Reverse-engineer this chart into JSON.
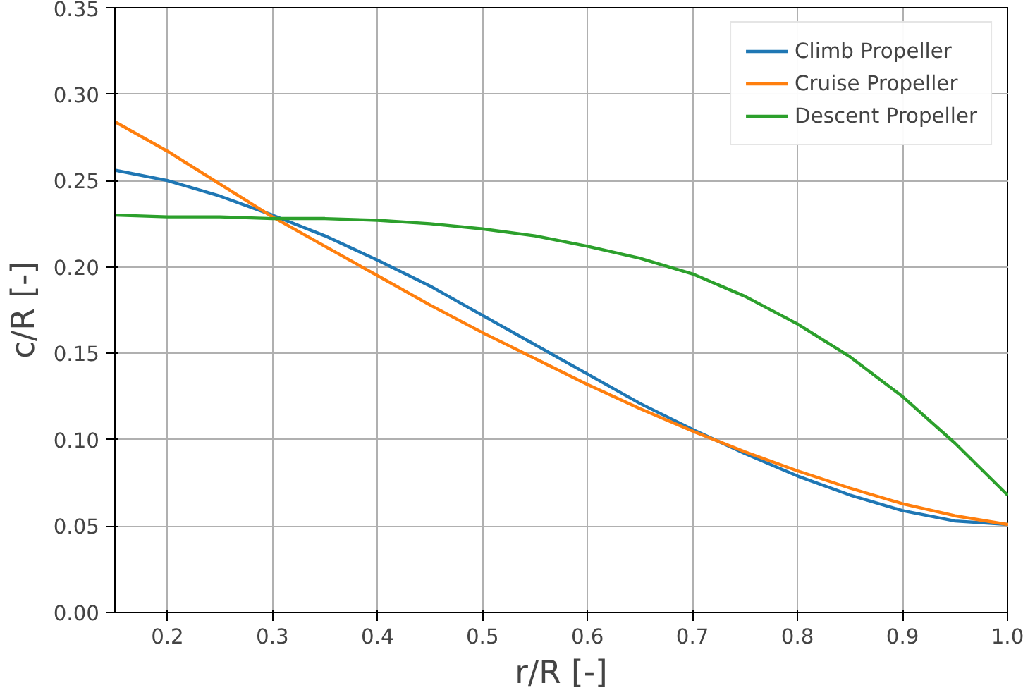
{
  "chart_data": {
    "type": "line",
    "xlabel": "r/R [-]",
    "ylabel": "c/R [-]",
    "x": [
      0.15,
      0.2,
      0.25,
      0.3,
      0.35,
      0.4,
      0.45,
      0.5,
      0.55,
      0.6,
      0.65,
      0.7,
      0.75,
      0.8,
      0.85,
      0.9,
      0.95,
      1.0
    ],
    "series": [
      {
        "name": "Climb Propeller",
        "color": "#1f77b4",
        "values": [
          0.256,
          0.25,
          0.241,
          0.23,
          0.218,
          0.204,
          0.189,
          0.172,
          0.155,
          0.138,
          0.121,
          0.106,
          0.092,
          0.079,
          0.068,
          0.059,
          0.053,
          0.051
        ]
      },
      {
        "name": "Cruise Propeller",
        "color": "#ff7f0e",
        "values": [
          0.284,
          0.267,
          0.248,
          0.229,
          0.212,
          0.195,
          0.178,
          0.162,
          0.147,
          0.132,
          0.118,
          0.105,
          0.093,
          0.082,
          0.072,
          0.063,
          0.056,
          0.051
        ]
      },
      {
        "name": "Descent Propeller",
        "color": "#2ca02c",
        "values": [
          0.23,
          0.229,
          0.229,
          0.228,
          0.228,
          0.227,
          0.225,
          0.222,
          0.218,
          0.212,
          0.205,
          0.196,
          0.183,
          0.167,
          0.148,
          0.125,
          0.098,
          0.068
        ]
      }
    ],
    "xlim": [
      0.15,
      1.0
    ],
    "ylim": [
      0,
      0.35
    ],
    "xticks": [
      0.2,
      0.3,
      0.4,
      0.5,
      0.6,
      0.7,
      0.8,
      0.9,
      {
        "value": 1.0,
        "label": "1.0"
      }
    ],
    "yticks": [
      {
        "value": 0,
        "label": "0.00"
      },
      {
        "value": 0.05,
        "label": "0.05"
      },
      {
        "value": 0.1,
        "label": "0.10"
      },
      {
        "value": 0.15,
        "label": "0.15"
      },
      {
        "value": 0.2,
        "label": "0.20"
      },
      {
        "value": 0.25,
        "label": "0.25"
      },
      {
        "value": 0.3,
        "label": "0.30"
      },
      {
        "value": 0.35,
        "label": "0.35"
      }
    ],
    "grid": true,
    "legend": "top right",
    "marker": "none",
    "line_style": "solid"
  }
}
